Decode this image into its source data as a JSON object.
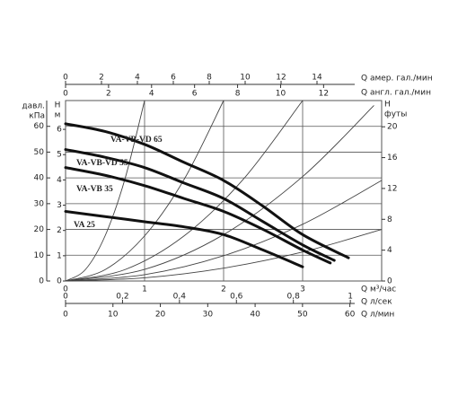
{
  "chart_data": {
    "type": "line",
    "y_title": [
      "давл.",
      "кПа"
    ],
    "y_unit_title": [
      "H",
      "м"
    ],
    "y2_title": [
      "H",
      "футы"
    ],
    "ylim": [
      0,
      70
    ],
    "yticks": [
      0,
      10,
      20,
      30,
      40,
      50,
      60
    ],
    "ym_lim": [
      0,
      7.14
    ],
    "ym_ticks": [
      0,
      1,
      2,
      3,
      4,
      5,
      6
    ],
    "y2lim": [
      0,
      23.4
    ],
    "y2ticks": [
      0,
      4,
      8,
      12,
      16,
      20
    ],
    "x_axes": [
      {
        "label": "Q  м³/час",
        "xlim": [
          0,
          4
        ],
        "xticks": [
          0,
          1,
          2,
          3
        ]
      },
      {
        "label": "Q  л/сек",
        "xlim": [
          0,
          1.11
        ],
        "xticks": [
          0,
          {
            "value": 0.2,
            "label": "0,2"
          },
          {
            "value": 0.4,
            "label": "0,4"
          },
          {
            "value": 0.6,
            "label": "0,6"
          },
          {
            "value": 0.8,
            "label": "0,8"
          },
          1
        ]
      },
      {
        "label": "Q  л/мин",
        "xlim": [
          0,
          66.7
        ],
        "xticks": [
          0,
          10,
          20,
          30,
          40,
          50,
          60
        ]
      },
      {
        "label": "Q  амер. гал./мин",
        "xlim": [
          0,
          17.6
        ],
        "xticks": [
          0,
          2,
          4,
          6,
          8,
          10,
          12,
          14
        ]
      },
      {
        "label": "Q  англ. гал./мин",
        "xlim": [
          0,
          14.7
        ],
        "xticks": [
          0,
          2,
          4,
          6,
          8,
          10,
          12
        ]
      }
    ],
    "series": [
      {
        "name": "VA-VB-VD 65",
        "color": "#111111",
        "x": [
          0,
          0.5,
          1,
          1.5,
          2,
          2.5,
          3,
          3.58
        ],
        "values": [
          61,
          58,
          53,
          46,
          39,
          29,
          18,
          9
        ]
      },
      {
        "name": "VA-VB-VD 55",
        "color": "#111111",
        "x": [
          0,
          0.5,
          1,
          1.5,
          2,
          2.5,
          3,
          3.4
        ],
        "values": [
          51,
          48,
          44,
          38,
          32,
          23,
          14,
          8
        ]
      },
      {
        "name": "VA-VB 35",
        "color": "#111111",
        "x": [
          0,
          0.5,
          1,
          1.5,
          2,
          2.5,
          3,
          3.35
        ],
        "values": [
          44,
          41,
          37,
          32,
          27,
          20,
          12,
          7
        ]
      },
      {
        "name": "VA 25",
        "color": "#111111",
        "x": [
          0,
          0.5,
          1,
          1.5,
          2,
          2.5,
          3
        ],
        "values": [
          27,
          25,
          23,
          21,
          18,
          12,
          5.5
        ]
      }
    ],
    "system_curves": [
      {
        "color": "#444444",
        "x": [
          0,
          0.25,
          0.5,
          0.75,
          1.0
        ],
        "values": [
          0,
          4.4,
          17.5,
          39.4,
          70
        ]
      },
      {
        "color": "#444444",
        "x": [
          0,
          0.5,
          1,
          1.5,
          2
        ],
        "values": [
          0,
          4.4,
          17.5,
          39.4,
          70
        ]
      },
      {
        "color": "#444444",
        "x": [
          0,
          0.75,
          1.5,
          2.25,
          3
        ],
        "values": [
          0,
          4.4,
          17.5,
          39.5,
          70
        ]
      },
      {
        "color": "#444444",
        "x": [
          0,
          1,
          2,
          3,
          3.9
        ],
        "values": [
          0,
          4.5,
          18,
          40.5,
          68
        ]
      },
      {
        "color": "#444444",
        "x": [
          0,
          1,
          2,
          3,
          4
        ],
        "values": [
          0,
          2.45,
          9.8,
          22,
          39
        ]
      },
      {
        "color": "#444444",
        "x": [
          0,
          1,
          2,
          3,
          4
        ],
        "values": [
          0,
          1.25,
          5,
          11.25,
          20
        ]
      }
    ],
    "grid": true
  }
}
